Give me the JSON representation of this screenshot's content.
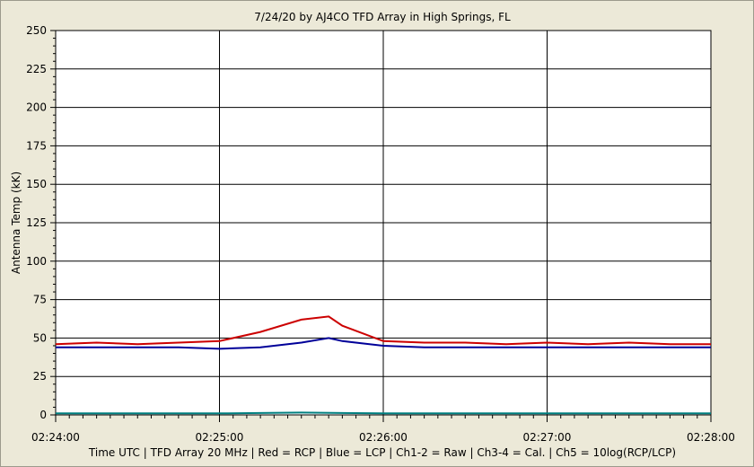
{
  "chart_data": {
    "type": "line",
    "title": "7/24/20  by  AJ4CO TFD Array  in  High Springs, FL",
    "xlabel": "Time UTC | TFD Array 20 MHz | Red = RCP | Blue = LCP | Ch1-2 = Raw | Ch3-4 = Cal. | Ch5 = 10log(RCP/LCP)",
    "ylabel": "Antenna Temp (kK)",
    "x_range": [
      "02:24:00",
      "02:28:00"
    ],
    "x_ticks": [
      "02:24:00",
      "02:25:00",
      "02:26:00",
      "02:27:00",
      "02:28:00"
    ],
    "ylim": [
      0,
      250
    ],
    "y_ticks": [
      "0",
      "25",
      "50",
      "75",
      "100",
      "125",
      "150",
      "175",
      "200",
      "225",
      "250"
    ],
    "grid": true,
    "legend": "none",
    "series": [
      {
        "name": "RCP",
        "color": "#cc0000",
        "x": [
          "02:24:00",
          "02:24:15",
          "02:24:30",
          "02:24:45",
          "02:25:00",
          "02:25:15",
          "02:25:30",
          "02:25:40",
          "02:25:45",
          "02:26:00",
          "02:26:15",
          "02:26:30",
          "02:26:45",
          "02:27:00",
          "02:27:15",
          "02:27:30",
          "02:27:45",
          "02:28:00"
        ],
        "values": [
          46,
          47,
          46,
          47,
          48,
          54,
          62,
          64,
          58,
          48,
          47,
          47,
          46,
          47,
          46,
          47,
          46,
          46
        ]
      },
      {
        "name": "LCP",
        "color": "#000099",
        "x": [
          "02:24:00",
          "02:24:15",
          "02:24:30",
          "02:24:45",
          "02:25:00",
          "02:25:15",
          "02:25:30",
          "02:25:40",
          "02:25:45",
          "02:26:00",
          "02:26:15",
          "02:26:30",
          "02:26:45",
          "02:27:00",
          "02:27:15",
          "02:27:30",
          "02:27:45",
          "02:28:00"
        ],
        "values": [
          44,
          44,
          44,
          44,
          43,
          44,
          47,
          50,
          48,
          45,
          44,
          44,
          44,
          44,
          44,
          44,
          44,
          44
        ]
      },
      {
        "name": "Ch5",
        "color": "#008080",
        "x": [
          "02:24:00",
          "02:25:00",
          "02:25:30",
          "02:26:00",
          "02:27:00",
          "02:28:00"
        ],
        "values": [
          1,
          1,
          1.5,
          1,
          1,
          1
        ]
      }
    ]
  },
  "colors": {
    "background": "#ece9d8",
    "plot_area": "#ffffff",
    "grid": "#000000"
  }
}
